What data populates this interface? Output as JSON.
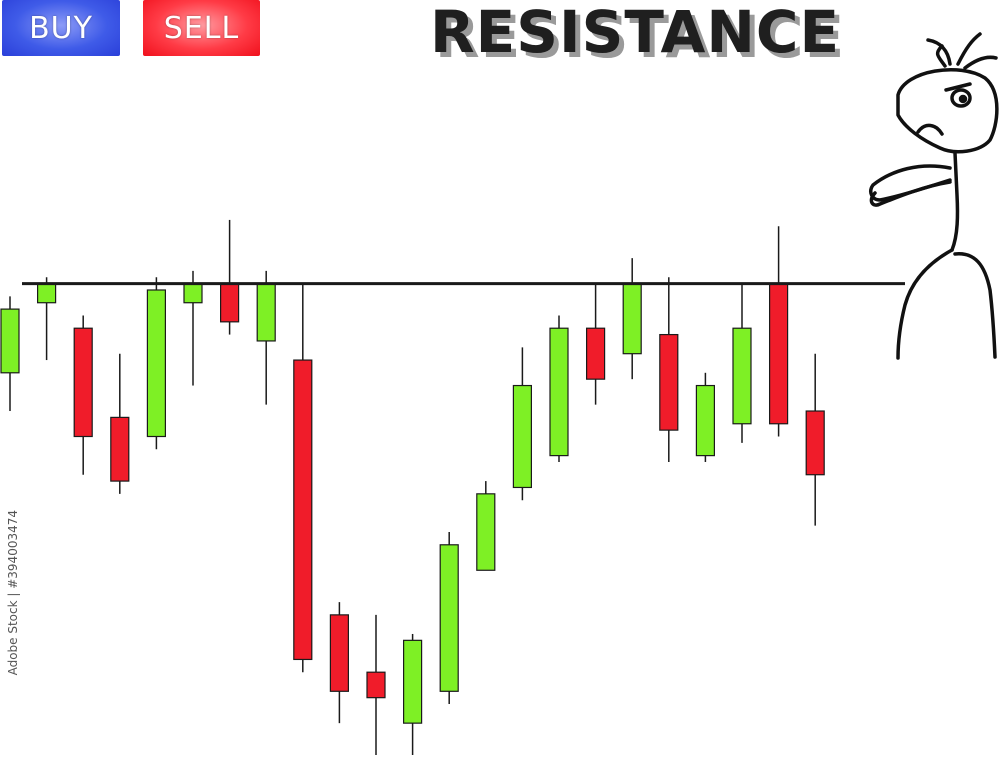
{
  "header": {
    "buy_label": "BUY",
    "sell_label": "SELL",
    "title": "RESISTANCE"
  },
  "watermark": "Adobe Stock | #394003474",
  "colors": {
    "bull": "#7ef025",
    "bear": "#f01c2a",
    "buy_button": "#3f5be8",
    "sell_button": "#ff3b46",
    "resistance_line": "#1a1a1a"
  },
  "chart_data": {
    "type": "candlestick",
    "ylim": [
      0,
      100
    ],
    "resistance_level": 74,
    "candles": [
      {
        "open": 60,
        "close": 70,
        "high": 72,
        "low": 54
      },
      {
        "open": 71,
        "close": 74,
        "high": 75,
        "low": 62
      },
      {
        "open": 67,
        "close": 50,
        "high": 69,
        "low": 44
      },
      {
        "open": 53,
        "close": 43,
        "high": 63,
        "low": 41
      },
      {
        "open": 50,
        "close": 73,
        "high": 75,
        "low": 48
      },
      {
        "open": 71,
        "close": 74,
        "high": 76,
        "low": 58
      },
      {
        "open": 74,
        "close": 68,
        "high": 84,
        "low": 66
      },
      {
        "open": 65,
        "close": 74,
        "high": 76,
        "low": 55
      },
      {
        "open": 62,
        "close": 15,
        "high": 74,
        "low": 13
      },
      {
        "open": 22,
        "close": 10,
        "high": 24,
        "low": 5
      },
      {
        "open": 13,
        "close": 9,
        "high": 22,
        "low": 0
      },
      {
        "open": 5,
        "close": 18,
        "high": 19,
        "low": 0
      },
      {
        "open": 10,
        "close": 33,
        "high": 35,
        "low": 8
      },
      {
        "open": 29,
        "close": 41,
        "high": 43,
        "low": 29
      },
      {
        "open": 42,
        "close": 58,
        "high": 64,
        "low": 40
      },
      {
        "open": 47,
        "close": 67,
        "high": 69,
        "low": 46
      },
      {
        "open": 67,
        "close": 59,
        "high": 74,
        "low": 55
      },
      {
        "open": 63,
        "close": 74,
        "high": 78,
        "low": 59
      },
      {
        "open": 66,
        "close": 51,
        "high": 75,
        "low": 46
      },
      {
        "open": 47,
        "close": 58,
        "high": 60,
        "low": 46
      },
      {
        "open": 52,
        "close": 67,
        "high": 74,
        "low": 49
      },
      {
        "open": 74,
        "close": 52,
        "high": 83,
        "low": 50
      },
      {
        "open": 54,
        "close": 44,
        "high": 63,
        "low": 36
      }
    ]
  }
}
